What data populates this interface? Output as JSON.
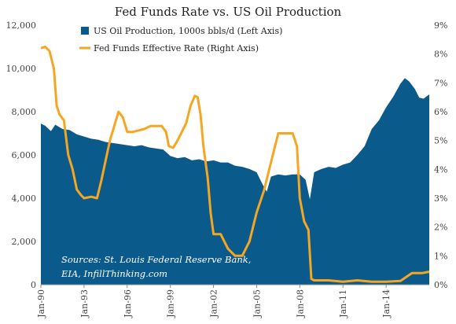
{
  "chart_data": {
    "type": "area",
    "title": "Fed Funds Rate vs. US Oil Production",
    "x_tick_labels": [
      "Jan-90",
      "Jan-93",
      "Jan-96",
      "Jan-99",
      "Jan-02",
      "Jan-05",
      "Jan-08",
      "Jan-11",
      "Jan-14"
    ],
    "x_range": [
      1990.0,
      2017.0
    ],
    "y_left": {
      "ylim": [
        0,
        12000
      ],
      "ticks": [
        "0",
        "2,000",
        "4,000",
        "6,000",
        "8,000",
        "10,000",
        "12,000"
      ]
    },
    "y_right": {
      "ylim": [
        0,
        9
      ],
      "ticks": [
        "0%",
        "1%",
        "2%",
        "3%",
        "4%",
        "5%",
        "6%",
        "7%",
        "8%",
        "9%"
      ]
    },
    "grid": false,
    "legend_placement": "top-center",
    "annotation": {
      "line1": "Sources: St. Louis Federal Reserve Bank,",
      "line2": "EIA, InfillThinking.com"
    },
    "colors": {
      "oil": "#0b5a8c",
      "fed": "#f5a623",
      "text": "#222222"
    },
    "series": [
      {
        "name": "US Oil Production, 1000s bbls/d (Left Axis)",
        "axis": "left",
        "kind": "area",
        "x": [
          1990.0,
          1990.3,
          1990.7,
          1991.0,
          1991.5,
          1992.0,
          1992.5,
          1993.0,
          1993.5,
          1994.0,
          1994.5,
          1995.0,
          1995.5,
          1996.0,
          1996.5,
          1997.0,
          1997.5,
          1998.0,
          1998.5,
          1999.0,
          1999.5,
          2000.0,
          2000.5,
          2001.0,
          2001.5,
          2002.0,
          2002.5,
          2003.0,
          2003.5,
          2004.0,
          2004.5,
          2005.0,
          2005.4,
          2005.7,
          2006.0,
          2006.5,
          2007.0,
          2007.5,
          2008.0,
          2008.4,
          2008.7,
          2009.0,
          2009.5,
          2010.0,
          2010.5,
          2011.0,
          2011.5,
          2012.0,
          2012.5,
          2013.0,
          2013.5,
          2014.0,
          2014.5,
          2015.0,
          2015.3,
          2015.6,
          2016.0,
          2016.3,
          2016.6,
          2017.0
        ],
        "values": [
          7450,
          7350,
          7100,
          7400,
          7200,
          7150,
          6950,
          6850,
          6750,
          6700,
          6600,
          6550,
          6500,
          6450,
          6400,
          6450,
          6350,
          6300,
          6250,
          5950,
          5850,
          5900,
          5750,
          5800,
          5700,
          5750,
          5650,
          5650,
          5500,
          5450,
          5350,
          5200,
          4650,
          4300,
          5000,
          5100,
          5050,
          5100,
          5100,
          4850,
          3950,
          5200,
          5350,
          5450,
          5400,
          5550,
          5650,
          6000,
          6400,
          7200,
          7600,
          8200,
          8700,
          9300,
          9550,
          9400,
          9050,
          8650,
          8600,
          8800
        ]
      },
      {
        "name": "Fed Funds Effective Rate (Right Axis)",
        "axis": "right",
        "kind": "line",
        "x": [
          1990.0,
          1990.3,
          1990.6,
          1990.9,
          1991.1,
          1991.3,
          1991.6,
          1991.9,
          1992.2,
          1992.5,
          1992.8,
          1993.0,
          1993.5,
          1993.9,
          1994.2,
          1994.5,
          1994.8,
          1995.1,
          1995.4,
          1995.7,
          1996.0,
          1996.4,
          1996.8,
          1997.2,
          1997.6,
          1998.0,
          1998.4,
          1998.7,
          1998.9,
          1999.2,
          1999.5,
          1999.8,
          2000.1,
          2000.4,
          2000.7,
          2000.9,
          2001.1,
          2001.3,
          2001.6,
          2001.8,
          2002.0,
          2002.5,
          2003.0,
          2003.5,
          2004.0,
          2004.5,
          2005.0,
          2005.5,
          2006.0,
          2006.5,
          2007.0,
          2007.5,
          2007.8,
          2008.0,
          2008.3,
          2008.6,
          2008.8,
          2009.0,
          2010.0,
          2011.0,
          2012.0,
          2013.0,
          2014.0,
          2015.0,
          2015.8,
          2016.0,
          2016.5,
          2017.0
        ],
        "values": [
          8.2,
          8.25,
          8.1,
          7.5,
          6.2,
          5.9,
          5.7,
          4.5,
          4.0,
          3.3,
          3.1,
          3.0,
          3.05,
          3.0,
          3.6,
          4.3,
          5.0,
          5.5,
          6.0,
          5.8,
          5.3,
          5.3,
          5.35,
          5.4,
          5.5,
          5.5,
          5.5,
          5.3,
          4.8,
          4.75,
          5.0,
          5.3,
          5.6,
          6.2,
          6.55,
          6.5,
          5.9,
          4.8,
          3.7,
          2.5,
          1.75,
          1.75,
          1.25,
          1.0,
          1.0,
          1.5,
          2.5,
          3.25,
          4.25,
          5.25,
          5.25,
          5.25,
          4.8,
          3.0,
          2.2,
          1.9,
          0.2,
          0.15,
          0.15,
          0.1,
          0.15,
          0.1,
          0.1,
          0.13,
          0.4,
          0.4,
          0.4,
          0.45
        ]
      }
    ]
  }
}
